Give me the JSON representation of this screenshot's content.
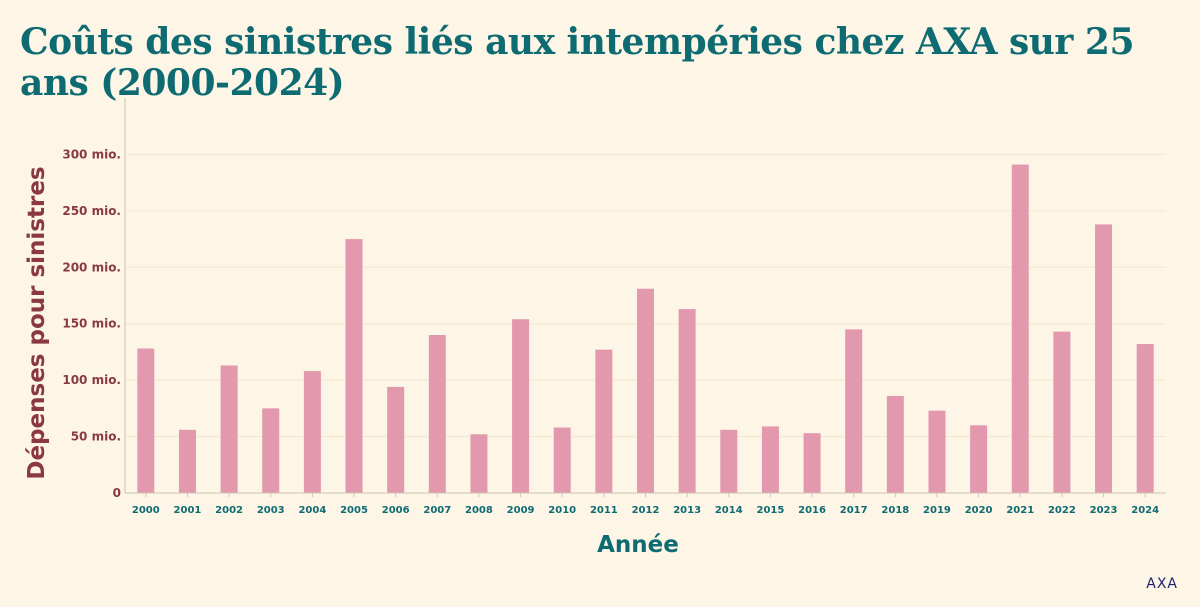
{
  "chart_data": {
    "type": "bar",
    "title": "Coûts des sinistres liés aux intempéries chez AXA sur 25 ans (2000-2024)",
    "xlabel": "Année",
    "ylabel": "Dépenses pour sinistres",
    "categories": [
      "2000",
      "2001",
      "2002",
      "2003",
      "2004",
      "2005",
      "2006",
      "2007",
      "2008",
      "2009",
      "2010",
      "2011",
      "2012",
      "2013",
      "2014",
      "2015",
      "2016",
      "2017",
      "2018",
      "2019",
      "2020",
      "2021",
      "2022",
      "2023",
      "2024"
    ],
    "values": [
      128,
      56,
      113,
      75,
      108,
      225,
      94,
      140,
      52,
      154,
      58,
      127,
      181,
      163,
      56,
      59,
      53,
      145,
      86,
      73,
      60,
      291,
      143,
      238,
      132
    ],
    "ylim": [
      0,
      350
    ],
    "yticks": [
      {
        "value": 0,
        "label": "0"
      },
      {
        "value": 50,
        "label": "50 mio."
      },
      {
        "value": 100,
        "label": "100 mio."
      },
      {
        "value": 150,
        "label": "150 mio."
      },
      {
        "value": 200,
        "label": "200 mio."
      },
      {
        "value": 250,
        "label": "250 mio."
      },
      {
        "value": 300,
        "label": "300 mio."
      }
    ],
    "grid": true,
    "colors": {
      "bar": "#e299ad",
      "title": "#0f6b72",
      "ylabel": "#8a3a3f",
      "xtick": "#0f6b72",
      "ytick": "#8a3a3f",
      "grid": "#f3e6d2",
      "axis": "#cfc4b3"
    }
  },
  "source": "AXA"
}
